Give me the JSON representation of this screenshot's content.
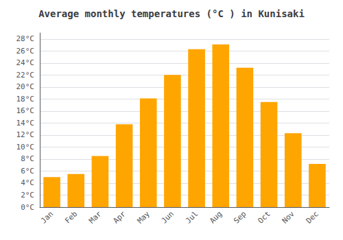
{
  "chart_data": {
    "type": "bar",
    "title": "Average monthly temperatures (°C ) in Kunisaki",
    "categories": [
      "Jan",
      "Feb",
      "Mar",
      "Apr",
      "May",
      "Jun",
      "Jul",
      "Aug",
      "Sep",
      "Oct",
      "Nov",
      "Dec"
    ],
    "values": [
      5.0,
      5.5,
      8.5,
      13.8,
      18.1,
      22.0,
      26.3,
      27.1,
      23.2,
      17.5,
      12.3,
      7.2
    ],
    "color": "#FFA500",
    "ylim": [
      0,
      29
    ],
    "yticks": [
      {
        "value": 0,
        "label": "0°C"
      },
      {
        "value": 2,
        "label": "2°C"
      },
      {
        "value": 4,
        "label": "4°C"
      },
      {
        "value": 6,
        "label": "6°C"
      },
      {
        "value": 8,
        "label": "8°C"
      },
      {
        "value": 10,
        "label": "10°C"
      },
      {
        "value": 12,
        "label": "12°C"
      },
      {
        "value": 14,
        "label": "14°C"
      },
      {
        "value": 16,
        "label": "16°C"
      },
      {
        "value": 18,
        "label": "18°C"
      },
      {
        "value": 20,
        "label": "20°C"
      },
      {
        "value": 22,
        "label": "22°C"
      },
      {
        "value": 24,
        "label": "24°C"
      },
      {
        "value": 26,
        "label": "26°C"
      },
      {
        "value": 28,
        "label": "28°C"
      }
    ],
    "grid": true
  }
}
